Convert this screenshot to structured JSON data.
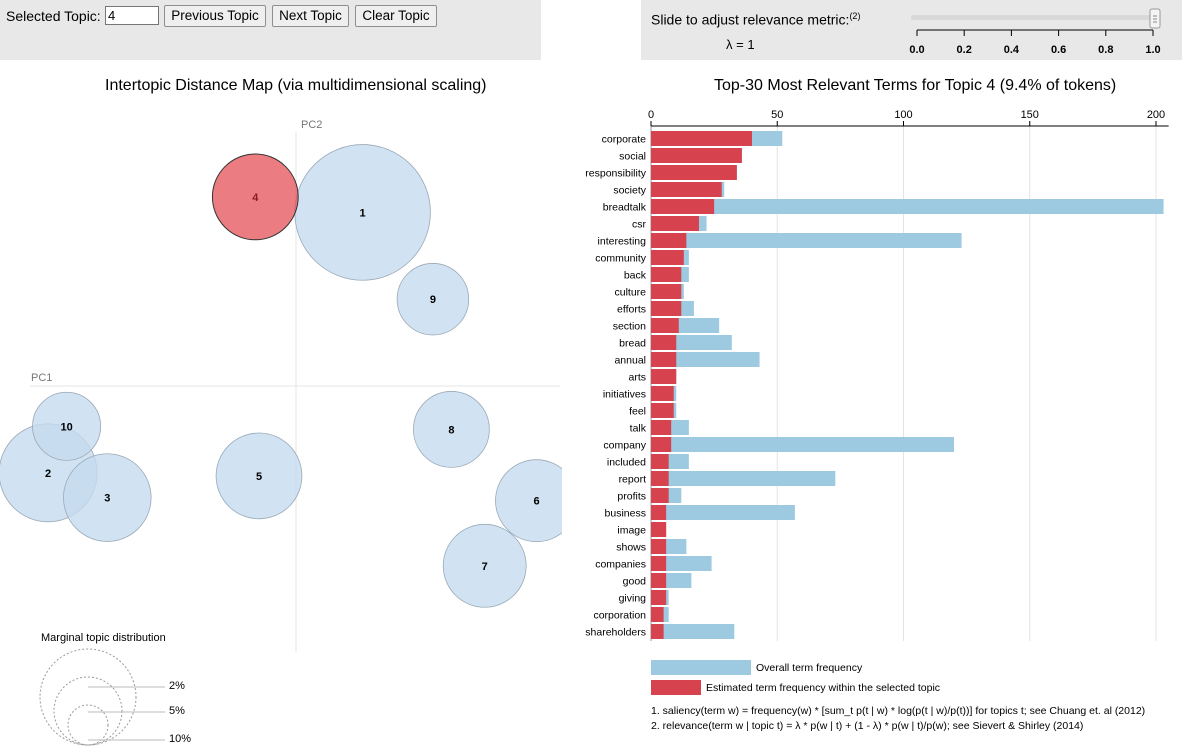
{
  "controls": {
    "selected_topic_label": "Selected Topic:",
    "selected_topic_value": "4",
    "prev_label": "Previous Topic",
    "next_label": "Next Topic",
    "clear_label": "Clear Topic",
    "slider_label": "Slide to adjust relevance metric:",
    "slider_footnote": "(2)",
    "lambda_text": "λ = 1",
    "lambda_value": 1.0,
    "slider_ticks": [
      "0.0",
      "0.2",
      "0.4",
      "0.6",
      "0.8",
      "1.0"
    ]
  },
  "left": {
    "title": "Intertopic Distance Map (via multidimensional scaling)",
    "pc1_label": "PC1",
    "pc2_label": "PC2",
    "legend_title": "Marginal topic distribution",
    "legend_labels": [
      "2%",
      "5%",
      "10%"
    ]
  },
  "right": {
    "title": "Top-30 Most Relevant Terms for Topic 4 (9.4% of tokens)",
    "legend_overall": "Overall term frequency",
    "legend_estimated": "Estimated term frequency within the selected topic",
    "footnote1": "1. saliency(term w) = frequency(w) * [sum_t p(t | w) * log(p(t | w)/p(t))] for topics t; see Chuang et. al (2012)",
    "footnote2": "2. relevance(term w | topic t) = λ * p(w | t) + (1 - λ) * p(w | t)/p(w); see Sievert & Shirley (2014)"
  },
  "colors": {
    "overall": "#9ecae1",
    "estimated": "#d6434f",
    "bubble": "#c6dbef",
    "selected_bubble": "#e34a50"
  },
  "chart_data": [
    {
      "type": "scatter",
      "title": "Intertopic Distance Map (via multidimensional scaling)",
      "xlabel": "PC1",
      "ylabel": "PC2",
      "selected": "4",
      "topics": [
        {
          "id": "1",
          "x": 0.18,
          "y": 0.56,
          "size": 11.5
        },
        {
          "id": "2",
          "x": -0.67,
          "y": -0.28,
          "size": 6.0
        },
        {
          "id": "3",
          "x": -0.51,
          "y": -0.36,
          "size": 4.8
        },
        {
          "id": "4",
          "x": -0.11,
          "y": 0.61,
          "size": 4.6
        },
        {
          "id": "5",
          "x": -0.1,
          "y": -0.29,
          "size": 4.6
        },
        {
          "id": "6",
          "x": 0.65,
          "y": -0.37,
          "size": 4.2
        },
        {
          "id": "7",
          "x": 0.51,
          "y": -0.58,
          "size": 4.3
        },
        {
          "id": "8",
          "x": 0.42,
          "y": -0.14,
          "size": 3.6
        },
        {
          "id": "9",
          "x": 0.37,
          "y": 0.28,
          "size": 3.2
        },
        {
          "id": "10",
          "x": -0.62,
          "y": -0.13,
          "size": 2.9
        }
      ]
    },
    {
      "type": "bar",
      "title": "Top-30 Most Relevant Terms for Topic 4 (9.4% of tokens)",
      "xlim": [
        0,
        205
      ],
      "xticks": [
        0,
        50,
        100,
        150,
        200
      ],
      "categories": [
        "corporate",
        "social",
        "responsibility",
        "society",
        "breadtalk",
        "csr",
        "interesting",
        "community",
        "back",
        "culture",
        "efforts",
        "section",
        "bread",
        "annual",
        "arts",
        "initiatives",
        "feel",
        "talk",
        "company",
        "included",
        "report",
        "profits",
        "business",
        "image",
        "shows",
        "companies",
        "good",
        "giving",
        "corporation",
        "shareholders"
      ],
      "series": [
        {
          "name": "Overall term frequency",
          "values": [
            52,
            36,
            34,
            29,
            203,
            22,
            123,
            15,
            15,
            13,
            17,
            27,
            32,
            43,
            10,
            10,
            10,
            15,
            120,
            15,
            73,
            12,
            57,
            6,
            14,
            24,
            16,
            7,
            7,
            33
          ]
        },
        {
          "name": "Estimated term frequency within the selected topic",
          "values": [
            40,
            36,
            34,
            28,
            25,
            19,
            14,
            13,
            12,
            12,
            12,
            11,
            10,
            10,
            10,
            9,
            9,
            8,
            8,
            7,
            7,
            7,
            6,
            6,
            6,
            6,
            6,
            6,
            5,
            5
          ]
        }
      ]
    }
  ]
}
